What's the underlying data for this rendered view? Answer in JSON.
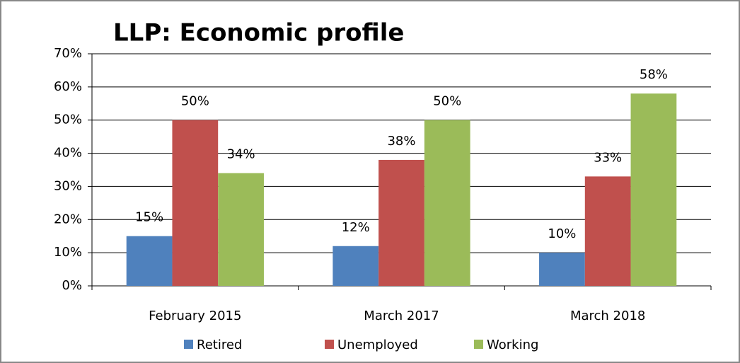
{
  "chart_data": {
    "type": "bar",
    "title": "LLP: Economic profile",
    "categories": [
      "February 2015",
      "March 2017",
      "March 2018"
    ],
    "series": [
      {
        "name": "Retired",
        "color": "#4f81bd",
        "values": [
          15,
          12,
          10
        ],
        "value_labels": [
          "15%",
          "12%",
          "10%"
        ]
      },
      {
        "name": "Unemployed",
        "color": "#c0504d",
        "values": [
          50,
          38,
          33
        ],
        "value_labels": [
          "50%",
          "38%",
          "33%"
        ]
      },
      {
        "name": "Working",
        "color": "#9bbb59",
        "values": [
          34,
          50,
          58
        ],
        "value_labels": [
          "34%",
          "50%",
          "58%"
        ]
      }
    ],
    "ylim": [
      0,
      70
    ],
    "yticks": [
      {
        "value": 0,
        "label": "0%"
      },
      {
        "value": 10,
        "label": "10%"
      },
      {
        "value": 20,
        "label": "20%"
      },
      {
        "value": 30,
        "label": "30%"
      },
      {
        "value": 40,
        "label": "40%"
      },
      {
        "value": 50,
        "label": "50%"
      },
      {
        "value": 60,
        "label": "60%"
      },
      {
        "value": 70,
        "label": "70%"
      }
    ],
    "grid": true,
    "legend": "bottom"
  }
}
